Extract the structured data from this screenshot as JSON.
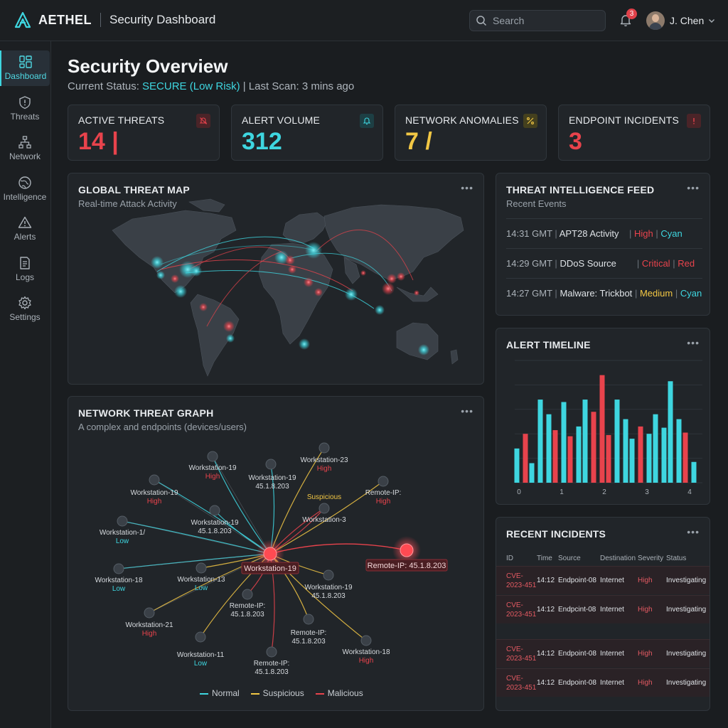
{
  "header": {
    "brand": "AETHEL",
    "title": "Security Dashboard",
    "search_placeholder": "Search",
    "notification_count": "3",
    "user_name": "J. Chen"
  },
  "sidebar": {
    "items": [
      {
        "label": "Dashboard",
        "icon": "dashboard-icon",
        "active": true
      },
      {
        "label": "Threats",
        "icon": "shield-icon"
      },
      {
        "label": "Network",
        "icon": "network-icon"
      },
      {
        "label": "Intelligence",
        "icon": "globe-icon"
      },
      {
        "label": "Alerts",
        "icon": "warning-icon"
      },
      {
        "label": "Logs",
        "icon": "document-icon"
      },
      {
        "label": "Settings",
        "icon": "gear-icon"
      }
    ]
  },
  "overview": {
    "title": "Security Overview",
    "status_prefix": "Current Status: ",
    "status_value": "SECURE (Low Risk)",
    "status_suffix": " | Last Scan: 3 mins ago"
  },
  "kpis": [
    {
      "label": "ACTIVE THREATS",
      "value": "14 |",
      "color": "#e8434c",
      "icon": "muted-bell-icon"
    },
    {
      "label": "ALERT VOLUME",
      "value": "312",
      "color": "#3ed6e0",
      "icon": "bell-icon"
    },
    {
      "label": "NETWORK ANOMALIES",
      "value": "7 /",
      "color": "#f2c744",
      "icon": "percent-icon"
    },
    {
      "label": "ENDPOINT INCIDENTS",
      "value": "3",
      "color": "#e8434c",
      "icon": "exclamation-icon"
    }
  ],
  "map": {
    "title": "GLOBAL THREAT MAP",
    "subtitle": "Real-time Attack Activity",
    "menu": "•••"
  },
  "feed": {
    "title": "THREAT INTELLIGENCE FEED",
    "subtitle": "Recent Events",
    "menu": "•••",
    "rows": [
      {
        "time": "14:31 GMT",
        "event": "APT28 Activity",
        "level": "High",
        "color": "Cyan",
        "level_hex": "#e8434c",
        "color_hex": "#3ed6e0"
      },
      {
        "time": "14:29 GMT",
        "event": "DDoS Source",
        "level": "Critical",
        "color": "Red",
        "level_hex": "#e8434c",
        "color_hex": "#e8434c"
      },
      {
        "time": "14:27 GMT",
        "event": "Malware: Trickbot",
        "level": "Medium",
        "color": "Cyan",
        "level_hex": "#f2c744",
        "color_hex": "#3ed6e0"
      }
    ]
  },
  "timeline": {
    "title": "ALERT TIMELINE",
    "menu": "•••"
  },
  "chart_data": {
    "type": "bar",
    "title": "ALERT TIMELINE",
    "x_ticks": [
      "0",
      "1",
      "2",
      "3",
      "4"
    ],
    "xlim": [
      -0.1,
      4.3
    ],
    "ylim": [
      0,
      100
    ],
    "grid": true,
    "bars": [
      {
        "x": -0.05,
        "value": 28,
        "color": "#3ed6e0"
      },
      {
        "x": 0.15,
        "value": 40,
        "color": "#e8434c"
      },
      {
        "x": 0.3,
        "value": 16,
        "color": "#3ed6e0"
      },
      {
        "x": 0.5,
        "value": 68,
        "color": "#3ed6e0"
      },
      {
        "x": 0.7,
        "value": 56,
        "color": "#3ed6e0"
      },
      {
        "x": 0.85,
        "value": 43,
        "color": "#e8434c"
      },
      {
        "x": 1.05,
        "value": 66,
        "color": "#3ed6e0"
      },
      {
        "x": 1.2,
        "value": 38,
        "color": "#e8434c"
      },
      {
        "x": 1.4,
        "value": 46,
        "color": "#3ed6e0"
      },
      {
        "x": 1.55,
        "value": 68,
        "color": "#3ed6e0"
      },
      {
        "x": 1.75,
        "value": 58,
        "color": "#e8434c"
      },
      {
        "x": 1.95,
        "value": 88,
        "color": "#e8434c"
      },
      {
        "x": 2.1,
        "value": 39,
        "color": "#e8434c"
      },
      {
        "x": 2.3,
        "value": 68,
        "color": "#3ed6e0"
      },
      {
        "x": 2.5,
        "value": 52,
        "color": "#3ed6e0"
      },
      {
        "x": 2.65,
        "value": 36,
        "color": "#3ed6e0"
      },
      {
        "x": 2.85,
        "value": 46,
        "color": "#e8434c"
      },
      {
        "x": 3.05,
        "value": 40,
        "color": "#3ed6e0"
      },
      {
        "x": 3.2,
        "value": 56,
        "color": "#3ed6e0"
      },
      {
        "x": 3.4,
        "value": 45,
        "color": "#3ed6e0"
      },
      {
        "x": 3.55,
        "value": 83,
        "color": "#3ed6e0"
      },
      {
        "x": 3.75,
        "value": 52,
        "color": "#3ed6e0"
      },
      {
        "x": 3.9,
        "value": 41,
        "color": "#e8434c"
      },
      {
        "x": 4.1,
        "value": 17,
        "color": "#3ed6e0"
      }
    ]
  },
  "graph": {
    "title": "NETWORK THREAT GRAPH",
    "subtitle": "A complex and endpoints (devices/users)",
    "menu": "•••",
    "center_label": "Workstation-19",
    "remote_label": "Remote-IP: 45.1.8.203",
    "nodes": [
      {
        "name": "Workstation-19",
        "status": "High",
        "status_hex": "#e8434c"
      },
      {
        "name": "Workstation-19",
        "status": "45.1.8.203",
        "status_hex": "#d7dbdf"
      },
      {
        "name": "Workstation-23",
        "status": "High",
        "status_hex": "#e8434c"
      },
      {
        "name": "Workstation-19",
        "status": "High",
        "status_hex": "#e8434c"
      },
      {
        "name": "",
        "status": "Suspicious",
        "status_hex": "#f2c744"
      },
      {
        "name": "Remote-IP:",
        "status": "High",
        "status_hex": "#e8434c"
      },
      {
        "name": "Workstation-19",
        "status": "45.1.8.203",
        "status_hex": "#d7dbdf"
      },
      {
        "name": "Workstation-1/",
        "status": "Low",
        "status_hex": "#3ed6e0"
      },
      {
        "name": "Workstation-18",
        "status": "Low",
        "status_hex": "#3ed6e0"
      },
      {
        "name": "Workstation-13",
        "status": "Low",
        "status_hex": "#3ed6e0"
      },
      {
        "name": "Workstation-19",
        "status": "45.1.8.203",
        "status_hex": "#d7dbdf"
      },
      {
        "name": "Remote-IP:",
        "status": "45.1.8.203",
        "status_hex": "#d7dbdf"
      },
      {
        "name": "Workstation-21",
        "status": "High",
        "status_hex": "#e8434c"
      },
      {
        "name": "Remote-IP:",
        "status": "45.1.8.203",
        "status_hex": "#d7dbdf"
      },
      {
        "name": "Workstation-11",
        "status": "Low",
        "status_hex": "#3ed6e0"
      },
      {
        "name": "Remote-IP:",
        "status": "45.1.8.203",
        "status_hex": "#d7dbdf"
      },
      {
        "name": "Workstation-18",
        "status": "High",
        "status_hex": "#e8434c"
      },
      {
        "name": "Workstation-3",
        "status": "",
        "status_hex": "#d7dbdf"
      }
    ],
    "legend": [
      {
        "label": "Normal",
        "color": "#3ed6e0"
      },
      {
        "label": "Suspicious",
        "color": "#f2c744"
      },
      {
        "label": "Malicious",
        "color": "#e8434c"
      }
    ]
  },
  "incidents": {
    "title": "RECENT INCIDENTS",
    "menu": "•••",
    "columns": [
      "ID",
      "Time",
      "Source",
      "Destination",
      "Severity",
      "Status"
    ],
    "rows": [
      {
        "id_1": "CVE-",
        "id_2": "2023-451",
        "time": "14:12",
        "source": "Endpoint-08",
        "destination": "Internet",
        "severity": "High",
        "status": "Investigating"
      },
      {
        "id_1": "CVE-",
        "id_2": "2023-451",
        "time": "14:12",
        "source": "Endpcint-08",
        "destination": "Internet",
        "severity": "High",
        "status": "Investigating"
      },
      {
        "id_1": "CVE-",
        "id_2": "2023-451",
        "time": "14:12",
        "source": "Endpoint-08",
        "destination": "Internet",
        "severity": "High",
        "status": "Investigating"
      },
      {
        "id_1": "CVE-",
        "id_2": "2023-451",
        "time": "14:12",
        "source": "Endpoint-08",
        "destination": "Internet",
        "severity": "High",
        "status": "Investigating"
      }
    ]
  }
}
